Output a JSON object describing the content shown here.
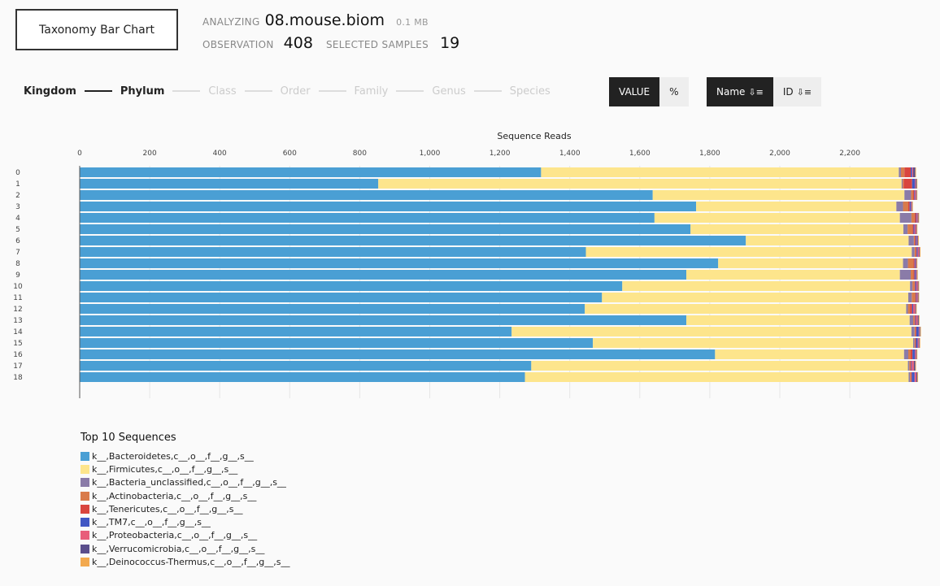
{
  "header": {
    "title_button": "Taxonomy Bar Chart",
    "analyzing_label": "ANALYZING",
    "file_name": "08.mouse.biom",
    "file_size": "0.1 MB",
    "observation_label": "OBSERVATION",
    "observation_count": "408",
    "selected_samples_label": "SELECTED SAMPLES",
    "selected_samples_count": "19"
  },
  "ranks": [
    {
      "label": "Kingdom",
      "active": true
    },
    {
      "label": "Phylum",
      "active": true
    },
    {
      "label": "Class",
      "active": false
    },
    {
      "label": "Order",
      "active": false
    },
    {
      "label": "Family",
      "active": false
    },
    {
      "label": "Genus",
      "active": false
    },
    {
      "label": "Species",
      "active": false
    }
  ],
  "toggles": {
    "value_label": "VALUE",
    "percent_label": "%",
    "name_sort_label": "Name",
    "id_sort_label": "ID",
    "sort_icon": "sort-descending-icon"
  },
  "legend": {
    "title": "Top 10 Sequences"
  },
  "chart_data": {
    "type": "bar",
    "orientation": "horizontal",
    "stacked": true,
    "title": "Sequence Reads",
    "xlim": [
      0,
      2400
    ],
    "x_ticks": [
      0,
      200,
      400,
      600,
      800,
      1000,
      1200,
      1400,
      1600,
      1800,
      2000,
      2200
    ],
    "x_tick_labels": [
      "0",
      "200",
      "400",
      "600",
      "800",
      "1,000",
      "1,200",
      "1,400",
      "1,600",
      "1,800",
      "2,000",
      "2,200"
    ],
    "grid": true,
    "categories": [
      "0",
      "1",
      "2",
      "3",
      "4",
      "5",
      "6",
      "7",
      "8",
      "9",
      "10",
      "11",
      "12",
      "13",
      "14",
      "15",
      "16",
      "17",
      "18"
    ],
    "series": [
      {
        "name": "k__,Bacteroidetes,c__,o__,f__,g__,s__",
        "color": "#4a9fd4",
        "values": [
          1318,
          853,
          1637,
          1761,
          1642,
          1745,
          1903,
          1446,
          1824,
          1733,
          1550,
          1492,
          1443,
          1733,
          1234,
          1466,
          1815,
          1290,
          1272
        ]
      },
      {
        "name": "k__,Firmicutes,c__,o__,f__,g__,s__",
        "color": "#fde58c",
        "values": [
          1022,
          1495,
          719,
          572,
          701,
          608,
          465,
          931,
          528,
          610,
          822,
          875,
          918,
          638,
          1142,
          915,
          540,
          1076,
          1096
        ]
      },
      {
        "name": "k__,Bacteria_unclassified,c__,o__,f__,g__,s__",
        "color": "#8a7ba8",
        "values": [
          6,
          3,
          19,
          19,
          33,
          12,
          15,
          8,
          14,
          31,
          7,
          10,
          5,
          10,
          9,
          4,
          12,
          4,
          4
        ]
      },
      {
        "name": "k__,Actinobacteria,c__,o__,f__,g__,s__",
        "color": "#d97b4a",
        "values": [
          10,
          3,
          6,
          15,
          9,
          14,
          3,
          4,
          16,
          8,
          6,
          10,
          6,
          4,
          3,
          2,
          7,
          3,
          3
        ]
      },
      {
        "name": "k__,Tenericutes,c__,o__,f__,g__,s__",
        "color": "#d9453e",
        "values": [
          18,
          24,
          3,
          4,
          4,
          3,
          2,
          2,
          3,
          3,
          2,
          2,
          6,
          2,
          2,
          2,
          5,
          2,
          2
        ]
      },
      {
        "name": "k__,TM7,c__,o__,f__,g__,s__",
        "color": "#4157c4",
        "values": [
          4,
          8,
          2,
          3,
          2,
          3,
          3,
          3,
          2,
          3,
          3,
          2,
          3,
          2,
          7,
          5,
          7,
          2,
          8
        ]
      },
      {
        "name": "k__,Proteobacteria,c__,o__,f__,g__,s__",
        "color": "#e85d7a",
        "values": [
          3,
          2,
          3,
          2,
          3,
          4,
          2,
          4,
          2,
          2,
          4,
          3,
          6,
          5,
          2,
          3,
          3,
          6,
          5
        ]
      },
      {
        "name": "k__,Verrucomicrobia,c__,o__,f__,g__,s__",
        "color": "#5a4e8c",
        "values": [
          6,
          3,
          2,
          2,
          2,
          2,
          2,
          2,
          2,
          2,
          2,
          2,
          2,
          3,
          2,
          2,
          2,
          4,
          3
        ]
      },
      {
        "name": "k__,Deinococcus-Thermus,c__,o__,f__,g__,s__",
        "color": "#f2a94e",
        "values": [
          2,
          2,
          2,
          2,
          2,
          2,
          2,
          2,
          2,
          2,
          2,
          2,
          2,
          2,
          2,
          2,
          2,
          2,
          2
        ]
      }
    ]
  }
}
